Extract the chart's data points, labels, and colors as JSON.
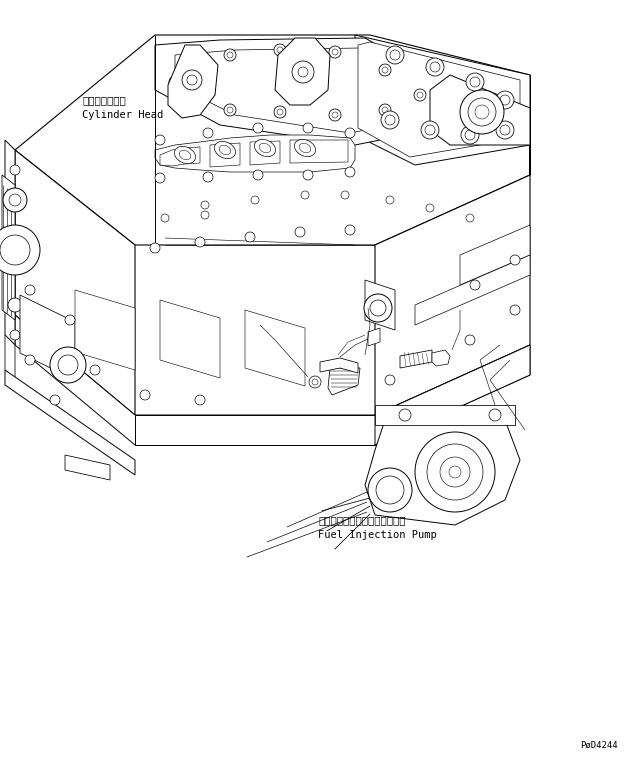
{
  "bg_color": "#ffffff",
  "lc": "#000000",
  "lw": 0.7,
  "label_cylinder_jp": "シリンダヘッド",
  "label_cylinder_en": "Cylinder Head",
  "label_fuel_jp": "フェルインジェクションポンプ",
  "label_fuel_en": "Fuel Injection Pump",
  "part_number": "PØD4244",
  "font_size": 7.5,
  "font_size_small": 6.5
}
